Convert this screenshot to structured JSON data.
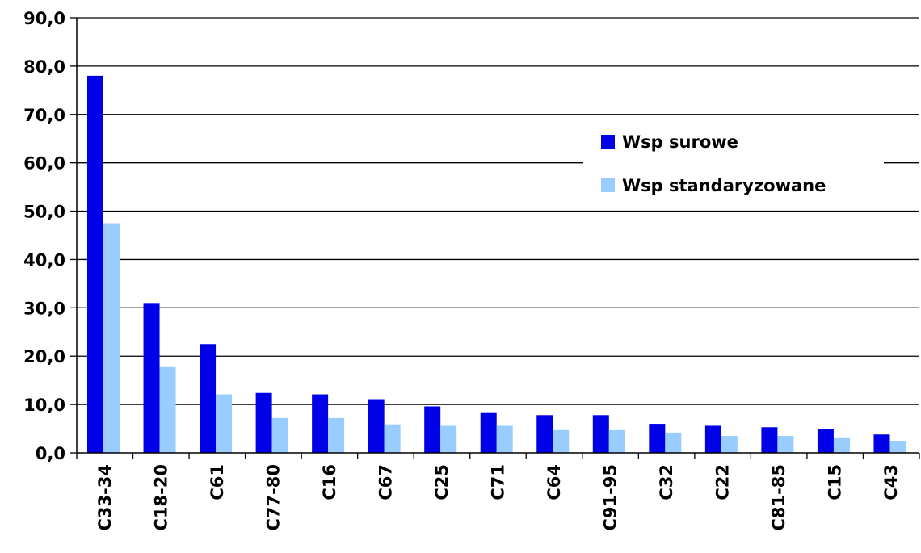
{
  "chart_data": {
    "type": "bar",
    "title": "",
    "xlabel": "",
    "ylabel": "",
    "ylim": [
      0,
      90
    ],
    "y_ticks": [
      "0,0",
      "10,0",
      "20,0",
      "30,0",
      "40,0",
      "50,0",
      "60,0",
      "70,0",
      "80,0",
      "90,0"
    ],
    "grid": true,
    "legend_position": "right",
    "categories": [
      "C33-34",
      "C18-20",
      "C61",
      "C77-80",
      "C16",
      "C67",
      "C25",
      "C71",
      "C64",
      "C91-95",
      "C32",
      "C22",
      "C81-85",
      "C15",
      "C43"
    ],
    "series": [
      {
        "name": "Wsp surowe",
        "color": "#0000e6",
        "values": [
          78.0,
          31.0,
          22.5,
          12.4,
          12.1,
          11.1,
          9.6,
          8.4,
          7.8,
          7.8,
          6.0,
          5.6,
          5.3,
          5.0,
          3.8
        ]
      },
      {
        "name": "Wsp standaryzowane",
        "color": "#99ccff",
        "values": [
          47.5,
          17.9,
          12.1,
          7.2,
          7.2,
          5.9,
          5.6,
          5.6,
          4.7,
          4.7,
          4.2,
          3.5,
          3.5,
          3.2,
          2.5
        ]
      }
    ]
  }
}
